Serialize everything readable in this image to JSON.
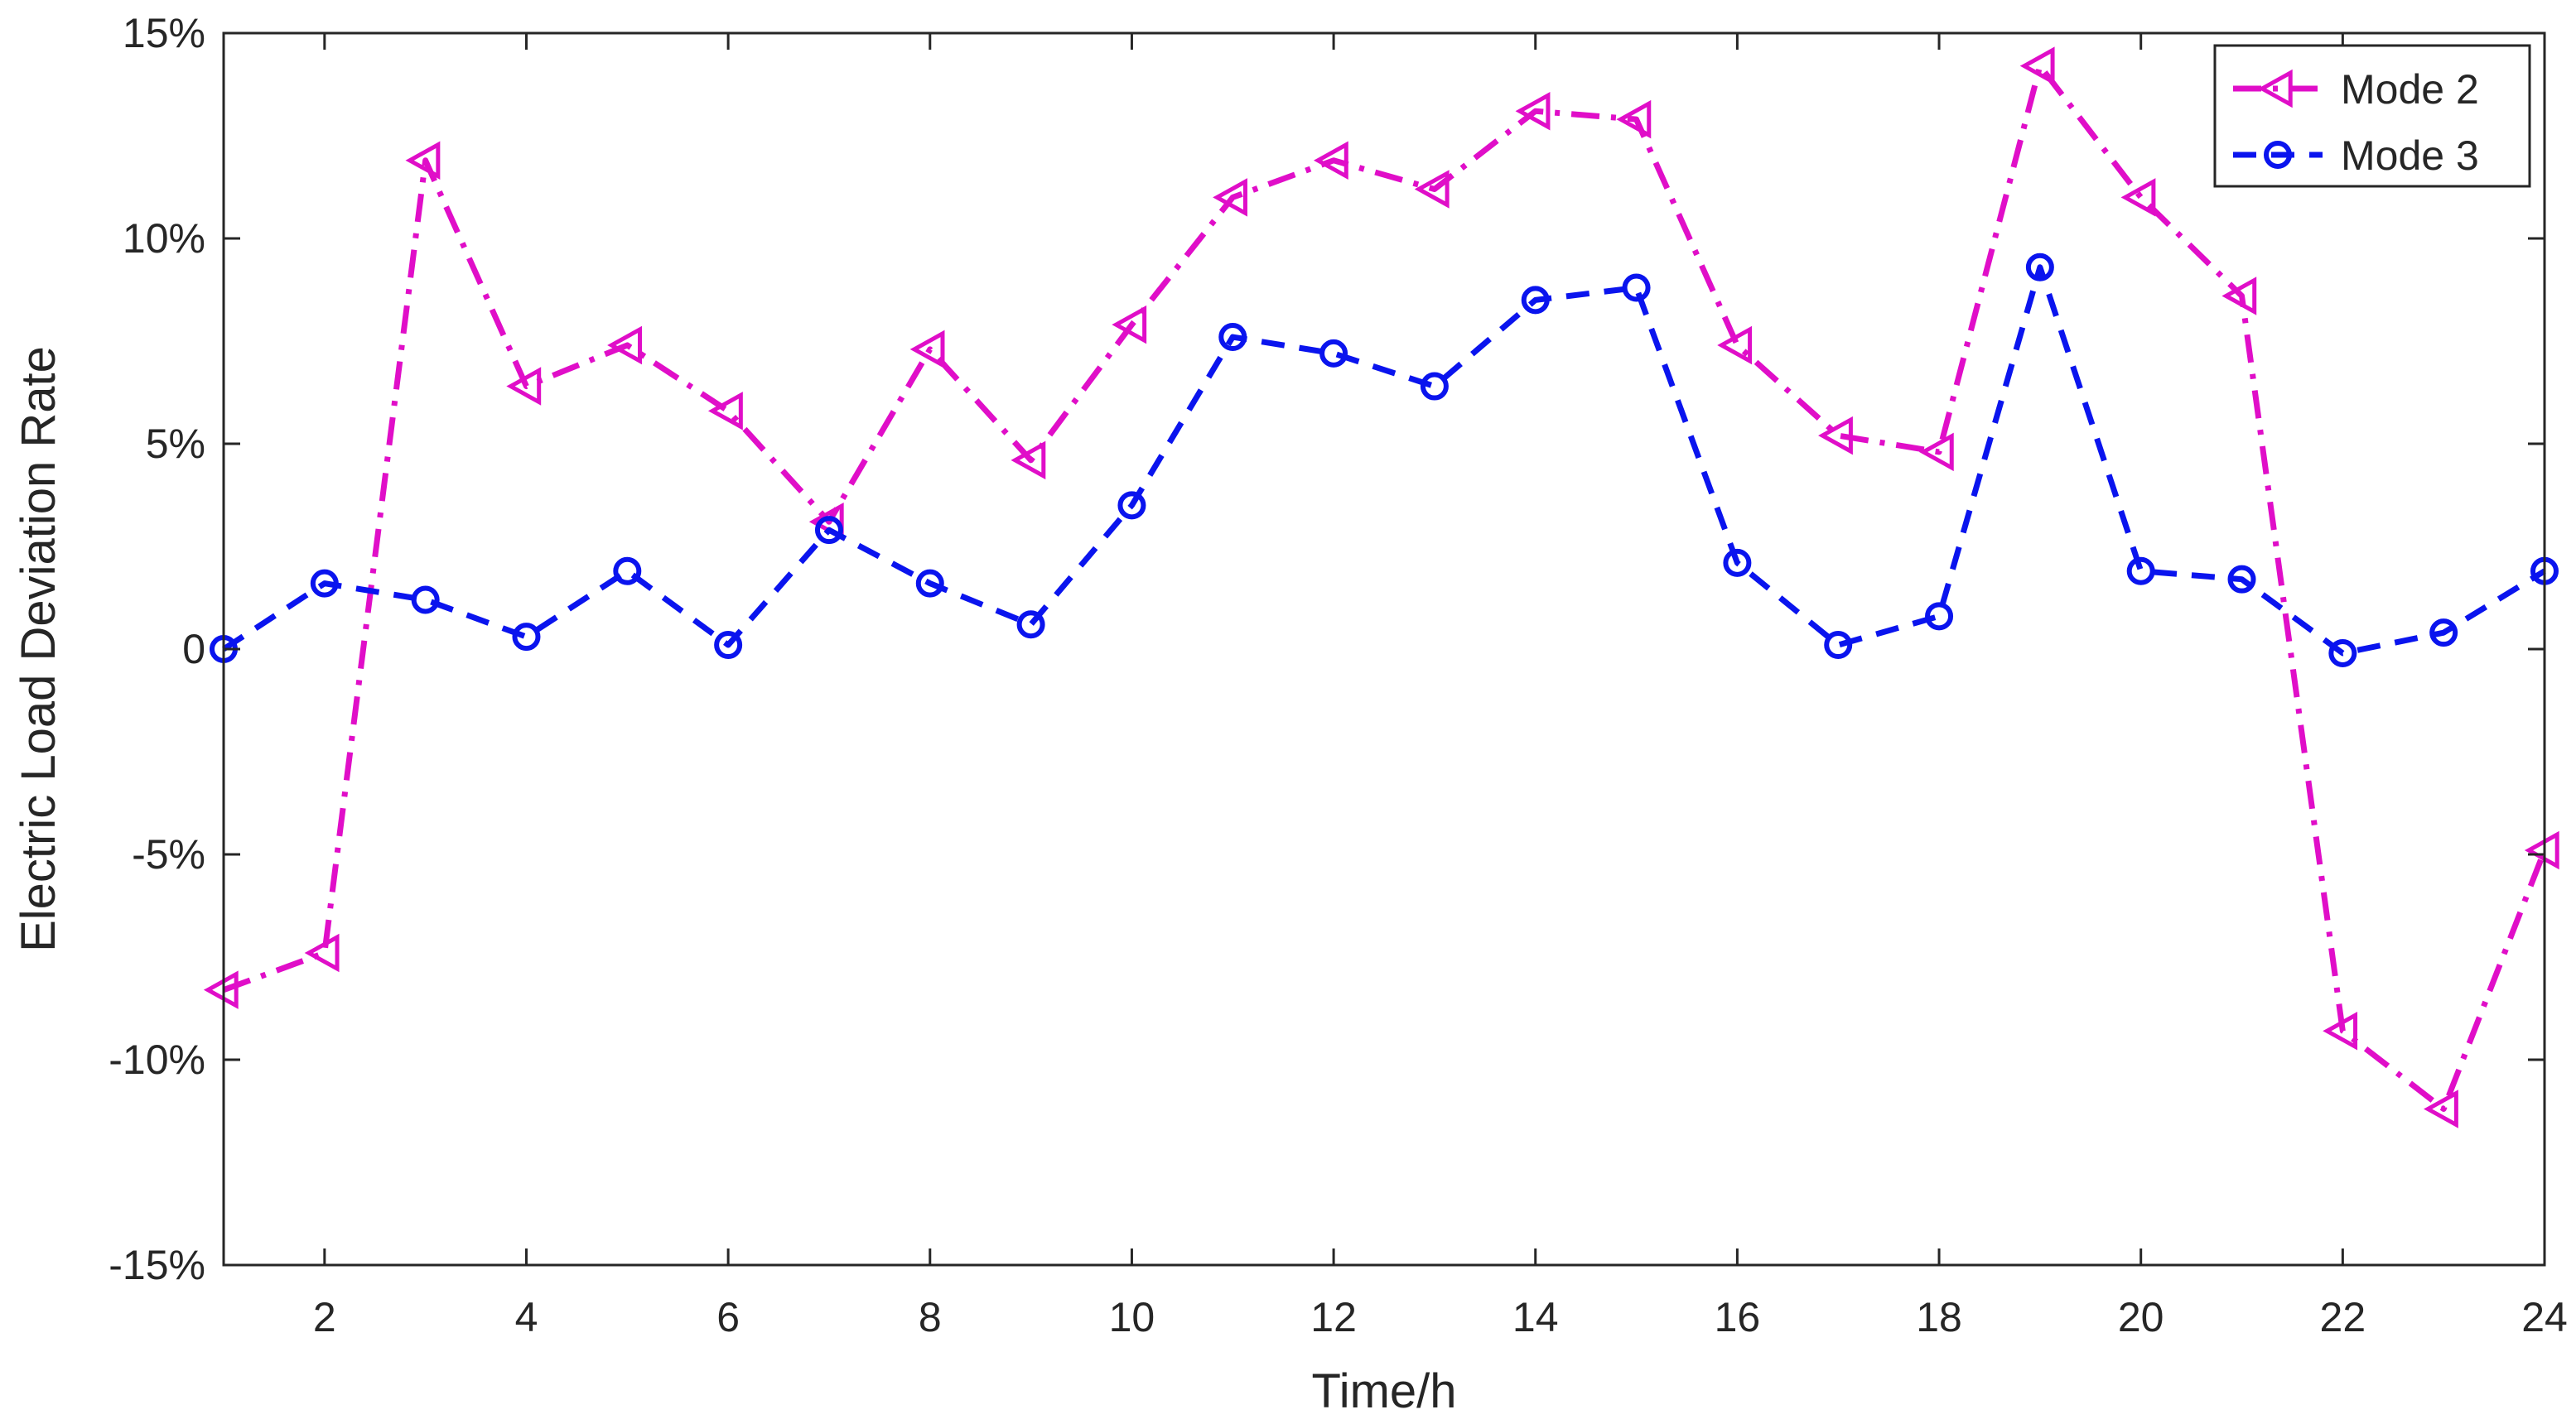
{
  "chart_data": {
    "type": "line",
    "title": "",
    "xlabel": "Time/h",
    "ylabel": "Electric Load Deviation Rate",
    "xlim": [
      1,
      24
    ],
    "ylim": [
      -15,
      15
    ],
    "x_ticks": [
      2,
      4,
      6,
      8,
      10,
      12,
      14,
      16,
      18,
      20,
      22,
      24
    ],
    "x_tick_labels": [
      "2",
      "4",
      "6",
      "8",
      "10",
      "12",
      "14",
      "16",
      "18",
      "20",
      "22",
      "24"
    ],
    "y_ticks": [
      -15,
      -10,
      -5,
      0,
      5,
      10,
      15
    ],
    "y_tick_labels": [
      "-15%",
      "-10%",
      "-5%",
      "0",
      "5%",
      "10%",
      "15%"
    ],
    "y_unit": "%",
    "grid": false,
    "legend_position": "top-right",
    "x": [
      1,
      2,
      3,
      4,
      5,
      6,
      7,
      8,
      9,
      10,
      11,
      12,
      13,
      14,
      15,
      16,
      17,
      18,
      19,
      20,
      21,
      22,
      23,
      24
    ],
    "series": [
      {
        "name": "Mode 2",
        "color": "#e00ec8",
        "line_style": "dash-dot",
        "marker": "left-triangle",
        "values": [
          -8.3,
          -7.4,
          11.9,
          6.4,
          7.4,
          5.8,
          3.1,
          7.3,
          4.6,
          7.9,
          11.0,
          11.9,
          11.2,
          13.1,
          12.9,
          7.4,
          5.2,
          4.8,
          14.2,
          11.0,
          8.6,
          -9.3,
          -11.2,
          -4.9
        ]
      },
      {
        "name": "Mode 3",
        "color": "#0a14ee",
        "line_style": "dash",
        "marker": "circle",
        "values": [
          0.0,
          1.6,
          1.2,
          0.3,
          1.9,
          0.1,
          2.9,
          1.6,
          0.6,
          3.5,
          7.6,
          7.2,
          6.4,
          8.5,
          8.8,
          2.1,
          0.1,
          0.8,
          9.3,
          1.9,
          1.7,
          -0.1,
          0.4,
          1.9
        ]
      }
    ]
  }
}
